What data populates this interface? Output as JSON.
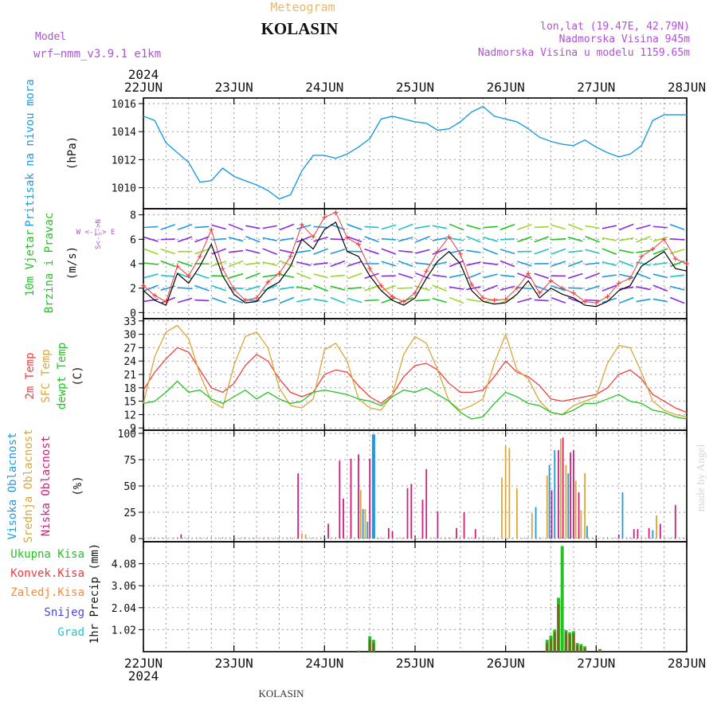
{
  "header": {
    "meteogram_label": "Meteogram",
    "station": "KOLASIN",
    "model_label": "Model",
    "model_name": "wrf—nmm_v3.9.1  e1km",
    "coords": "lon,lat (19.47E, 42.79N)",
    "elevation": "Nadmorska Visina 945m",
    "model_elevation": "Nadmorska Visina u modelu 1159.65m",
    "footer_station": "KOLASIN",
    "watermark": "made by Angel"
  },
  "time_axis": {
    "year": "2024",
    "days": [
      "22JUN",
      "23JUN",
      "24JUN",
      "25JUN",
      "26JUN",
      "27JUN",
      "28JUN"
    ]
  },
  "colors": {
    "pressure": "#1e9be0",
    "wind_speed": "#000000",
    "gust": "#ef3a3a",
    "temp2m": "#ef4040",
    "sfc_temp": "#dba63a",
    "dewpt": "#22c422",
    "high_cloud": "#1e9be0",
    "mid_cloud": "#dba63a",
    "low_cloud": "#d0207a",
    "total_precip": "#22c422",
    "conv_precip": "#ef3a3a",
    "frozen_precip": "#ff8833",
    "snow": "#4444ee",
    "hail": "#22c4c4",
    "model_label": "#b050d8",
    "grid": "#9a9a9a"
  },
  "chart_data": [
    {
      "id": "pressure",
      "type": "line",
      "ylabel_main": "Pritisak na nivou mora",
      "ylabel_unit": "(hPa)",
      "yticks": [
        1010,
        1012,
        1014,
        1016
      ],
      "ylim": [
        1008.5,
        1016.4
      ],
      "xlim": [
        0,
        144
      ],
      "x_unit": "hours since 22JUN 00",
      "x": [
        0,
        3,
        6,
        9,
        12,
        15,
        18,
        21,
        24,
        27,
        30,
        33,
        36,
        39,
        42,
        45,
        48,
        51,
        54,
        57,
        60,
        63,
        66,
        69,
        72,
        75,
        78,
        81,
        84,
        87,
        90,
        93,
        96,
        99,
        102,
        105,
        108,
        111,
        114,
        117,
        120,
        123,
        126,
        129,
        132,
        135,
        138,
        141,
        144
      ],
      "values": [
        1015.1,
        1014.8,
        1013.2,
        1012.5,
        1011.8,
        1010.4,
        1010.5,
        1011.4,
        1010.8,
        1010.5,
        1010.2,
        1009.8,
        1009.2,
        1009.5,
        1011.2,
        1012.3,
        1012.3,
        1012.1,
        1012.4,
        1012.9,
        1013.5,
        1014.9,
        1015.1,
        1014.9,
        1014.7,
        1014.6,
        1014.1,
        1014.2,
        1014.7,
        1015.4,
        1015.8,
        1015.1,
        1014.9,
        1014.7,
        1014.2,
        1013.6,
        1013.3,
        1013.1,
        1013.0,
        1013.4,
        1012.9,
        1012.5,
        1012.2,
        1012.4,
        1013.0,
        1014.8,
        1015.2,
        1015.2,
        1015.2
      ]
    },
    {
      "id": "wind",
      "type": "line",
      "ylabel_main": "10m Vjetar",
      "ylabel_sub": "Brzina i Pravac",
      "ylabel_unit": "(m/s)",
      "compass": "W <-|-> E",
      "compass_ns": "S<-|->N",
      "yticks": [
        0,
        2,
        4,
        6,
        8
      ],
      "ylim": [
        -0.5,
        8.5
      ],
      "xlim": [
        0,
        144
      ],
      "series": [
        {
          "key": "speed",
          "x": [
            0,
            3,
            6,
            9,
            12,
            15,
            18,
            21,
            24,
            27,
            30,
            33,
            36,
            39,
            42,
            45,
            48,
            51,
            54,
            57,
            60,
            63,
            66,
            69,
            72,
            75,
            78,
            81,
            84,
            87,
            90,
            93,
            96,
            99,
            102,
            105,
            108,
            111,
            114,
            117,
            120,
            123,
            126,
            129,
            132,
            135,
            138,
            141,
            144
          ],
          "values": [
            1.8,
            1.0,
            0.6,
            3.2,
            2.4,
            3.8,
            5.6,
            3.0,
            1.5,
            0.8,
            0.9,
            2.0,
            2.5,
            3.8,
            6.0,
            5.2,
            6.8,
            7.4,
            5.0,
            4.6,
            3.0,
            1.8,
            1.0,
            0.6,
            1.2,
            2.8,
            4.2,
            5.0,
            4.0,
            1.8,
            0.9,
            0.7,
            0.8,
            1.5,
            2.6,
            1.2,
            2.0,
            1.5,
            1.2,
            0.6,
            0.5,
            0.9,
            1.8,
            2.2,
            3.8,
            4.4,
            5.0,
            3.6,
            3.4
          ]
        },
        {
          "key": "gust",
          "x": [
            0,
            3,
            6,
            9,
            12,
            15,
            18,
            21,
            24,
            27,
            30,
            33,
            36,
            39,
            42,
            45,
            48,
            51,
            54,
            57,
            60,
            63,
            66,
            69,
            72,
            75,
            78,
            81,
            84,
            87,
            90,
            93,
            96,
            99,
            102,
            105,
            108,
            111,
            114,
            117,
            120,
            123,
            126,
            129,
            132,
            135,
            138,
            141,
            144
          ],
          "values": [
            2.2,
            1.4,
            0.9,
            3.8,
            3.0,
            4.6,
            6.8,
            3.6,
            1.9,
            1.0,
            1.2,
            2.5,
            3.2,
            4.6,
            7.2,
            6.2,
            7.8,
            8.2,
            6.1,
            5.6,
            3.6,
            2.2,
            1.3,
            0.9,
            1.6,
            3.4,
            5.0,
            6.2,
            4.8,
            2.3,
            1.2,
            1.0,
            1.1,
            2.0,
            3.2,
            1.6,
            2.6,
            2.0,
            1.6,
            0.9,
            0.8,
            1.3,
            2.4,
            2.8,
            4.6,
            5.2,
            6.0,
            4.4,
            4.0
          ]
        }
      ]
    },
    {
      "id": "temperature",
      "type": "line",
      "ylabel_main": "2m Temp",
      "ylabel_sub": "SFC Temp",
      "ylabel_sub2": "dewpt Temp",
      "ylabel_unit": "(C)",
      "yticks": [
        9,
        12,
        15,
        18,
        21,
        24,
        27,
        30,
        33
      ],
      "ylim": [
        8.5,
        33.5
      ],
      "xlim": [
        0,
        144
      ],
      "series": [
        {
          "key": "t2m",
          "x": [
            0,
            3,
            6,
            9,
            12,
            15,
            18,
            21,
            24,
            27,
            30,
            33,
            36,
            39,
            42,
            45,
            48,
            51,
            54,
            57,
            60,
            63,
            66,
            69,
            72,
            75,
            78,
            81,
            84,
            87,
            90,
            93,
            96,
            99,
            102,
            105,
            108,
            111,
            114,
            117,
            120,
            123,
            126,
            129,
            132,
            135,
            138,
            141,
            144
          ],
          "values": [
            17.5,
            21.5,
            24.5,
            27.0,
            26.0,
            22.0,
            18.0,
            17.0,
            19.0,
            23.0,
            25.5,
            24.0,
            20.0,
            17.0,
            16.0,
            17.0,
            21.0,
            22.0,
            21.5,
            18.5,
            16.0,
            14.5,
            16.5,
            20.5,
            23.0,
            23.5,
            22.0,
            19.0,
            17.0,
            17.0,
            17.5,
            20.5,
            24.0,
            21.5,
            20.5,
            18.5,
            15.5,
            15.0,
            15.5,
            16.0,
            16.5,
            18.0,
            21.0,
            22.0,
            20.0,
            16.5,
            15.0,
            13.5,
            12.5
          ]
        },
        {
          "key": "sfc",
          "x": [
            0,
            3,
            6,
            9,
            12,
            15,
            18,
            21,
            24,
            27,
            30,
            33,
            36,
            39,
            42,
            45,
            48,
            51,
            54,
            57,
            60,
            63,
            66,
            69,
            72,
            75,
            78,
            81,
            84,
            87,
            90,
            93,
            96,
            99,
            102,
            105,
            108,
            111,
            114,
            117,
            120,
            123,
            126,
            129,
            132,
            135,
            138,
            141,
            144
          ],
          "values": [
            14.5,
            25.0,
            30.5,
            32.0,
            29.0,
            21.0,
            15.0,
            13.5,
            23.0,
            29.5,
            30.5,
            27.0,
            18.0,
            14.0,
            13.5,
            15.5,
            26.5,
            28.0,
            24.0,
            15.5,
            13.5,
            13.0,
            16.5,
            25.5,
            29.5,
            28.0,
            22.0,
            15.0,
            13.0,
            14.0,
            15.5,
            23.5,
            30.0,
            22.0,
            20.0,
            15.0,
            12.5,
            12.0,
            14.0,
            15.0,
            16.0,
            23.5,
            27.5,
            27.0,
            21.5,
            15.0,
            13.0,
            12.0,
            11.5
          ]
        },
        {
          "key": "dewpt",
          "x": [
            0,
            3,
            6,
            9,
            12,
            15,
            18,
            21,
            24,
            27,
            30,
            33,
            36,
            39,
            42,
            45,
            48,
            51,
            54,
            57,
            60,
            63,
            66,
            69,
            72,
            75,
            78,
            81,
            84,
            87,
            90,
            93,
            96,
            99,
            102,
            105,
            108,
            111,
            114,
            117,
            120,
            123,
            126,
            129,
            132,
            135,
            138,
            141,
            144
          ],
          "values": [
            14.5,
            15.0,
            17.0,
            19.5,
            17.0,
            17.5,
            15.5,
            14.5,
            16.0,
            17.5,
            15.5,
            17.0,
            15.5,
            14.5,
            15.0,
            17.0,
            17.5,
            17.0,
            16.5,
            15.5,
            15.0,
            14.0,
            16.0,
            17.5,
            17.0,
            18.0,
            16.5,
            15.0,
            12.5,
            11.0,
            11.5,
            14.5,
            17.0,
            16.0,
            14.5,
            14.0,
            12.5,
            12.0,
            13.0,
            14.5,
            14.5,
            15.5,
            16.5,
            15.0,
            14.5,
            13.0,
            12.5,
            11.5,
            11.0
          ]
        }
      ]
    },
    {
      "id": "clouds",
      "type": "bar",
      "ylabel_main": "Visoka Oblacnost",
      "ylabel_sub": "Srednja Oblacnost",
      "ylabel_sub2": "Niska Oblacnost",
      "ylabel_unit": "(%)",
      "yticks": [
        0,
        25,
        50,
        75,
        100
      ],
      "ylim": [
        -3,
        103
      ],
      "xlim": [
        0,
        144
      ],
      "bars": [
        {
          "x": 10,
          "layer": "low",
          "value": 4
        },
        {
          "x": 41,
          "layer": "low",
          "value": 62
        },
        {
          "x": 42,
          "layer": "mid",
          "value": 5
        },
        {
          "x": 43,
          "layer": "mid",
          "value": 4
        },
        {
          "x": 49,
          "layer": "low",
          "value": 14
        },
        {
          "x": 52,
          "layer": "low",
          "value": 74
        },
        {
          "x": 53,
          "layer": "low",
          "value": 38
        },
        {
          "x": 55,
          "layer": "low",
          "value": 76
        },
        {
          "x": 57,
          "layer": "low",
          "value": 80
        },
        {
          "x": 57.6,
          "layer": "mid",
          "value": 46
        },
        {
          "x": 58.2,
          "layer": "high",
          "value": 28
        },
        {
          "x": 58.8,
          "layer": "mid",
          "value": 28
        },
        {
          "x": 59.4,
          "layer": "high",
          "value": 16
        },
        {
          "x": 60,
          "layer": "low",
          "value": 76
        },
        {
          "x": 61,
          "layer": "high",
          "value": 99
        },
        {
          "x": 65,
          "layer": "low",
          "value": 10
        },
        {
          "x": 66,
          "layer": "low",
          "value": 7
        },
        {
          "x": 70,
          "layer": "low",
          "value": 48
        },
        {
          "x": 71,
          "layer": "low",
          "value": 52
        },
        {
          "x": 74,
          "layer": "low",
          "value": 37
        },
        {
          "x": 75,
          "layer": "low",
          "value": 66
        },
        {
          "x": 78,
          "layer": "low",
          "value": 26
        },
        {
          "x": 83,
          "layer": "low",
          "value": 10
        },
        {
          "x": 85,
          "layer": "low",
          "value": 25
        },
        {
          "x": 88,
          "layer": "low",
          "value": 9
        },
        {
          "x": 95,
          "layer": "mid",
          "value": 58
        },
        {
          "x": 96,
          "layer": "mid",
          "value": 88
        },
        {
          "x": 97,
          "layer": "mid",
          "value": 86
        },
        {
          "x": 99,
          "layer": "mid",
          "value": 48
        },
        {
          "x": 103,
          "layer": "mid",
          "value": 24
        },
        {
          "x": 104,
          "layer": "high",
          "value": 30
        },
        {
          "x": 107,
          "layer": "mid",
          "value": 60
        },
        {
          "x": 107.6,
          "layer": "high",
          "value": 70
        },
        {
          "x": 108.2,
          "layer": "low",
          "value": 46
        },
        {
          "x": 109,
          "layer": "high",
          "value": 84
        },
        {
          "x": 110,
          "layer": "low",
          "value": 84
        },
        {
          "x": 110.6,
          "layer": "mid",
          "value": 95
        },
        {
          "x": 111.2,
          "layer": "low",
          "value": 96
        },
        {
          "x": 112,
          "layer": "mid",
          "value": 70
        },
        {
          "x": 112.6,
          "layer": "high",
          "value": 62
        },
        {
          "x": 113.2,
          "layer": "low",
          "value": 82
        },
        {
          "x": 114,
          "layer": "low",
          "value": 84
        },
        {
          "x": 114.6,
          "layer": "mid",
          "value": 55
        },
        {
          "x": 115.4,
          "layer": "low",
          "value": 44
        },
        {
          "x": 116,
          "layer": "mid",
          "value": 27
        },
        {
          "x": 117,
          "layer": "mid",
          "value": 62
        },
        {
          "x": 117.6,
          "layer": "high",
          "value": 12
        },
        {
          "x": 126,
          "layer": "low",
          "value": 4
        },
        {
          "x": 127,
          "layer": "high",
          "value": 44
        },
        {
          "x": 130,
          "layer": "low",
          "value": 9
        },
        {
          "x": 131,
          "layer": "low",
          "value": 9
        },
        {
          "x": 134,
          "layer": "low",
          "value": 10
        },
        {
          "x": 135,
          "layer": "high",
          "value": 8
        },
        {
          "x": 136,
          "layer": "mid",
          "value": 22
        },
        {
          "x": 137,
          "layer": "low",
          "value": 14
        },
        {
          "x": 141,
          "layer": "low",
          "value": 32
        }
      ]
    },
    {
      "id": "precip",
      "type": "bar",
      "ylabel_unit": "1hr Precip (mm)",
      "legend": [
        "Ukupna Kisa",
        "Konvek.Kisa",
        "Zaledj.Kisa",
        "Snijeg",
        "Grad"
      ],
      "yticks": [
        1.02,
        2.04,
        3.06,
        4.08
      ],
      "tick_labels": [
        "1.02",
        "2.04",
        "3.06",
        "4.08"
      ],
      "ylim": [
        0,
        5.1
      ],
      "xlim": [
        0,
        144
      ],
      "bars": [
        {
          "x": 57,
          "total": 0.05,
          "conv": 0.04
        },
        {
          "x": 60,
          "total": 0.72,
          "conv": 0.55
        },
        {
          "x": 61,
          "total": 0.55,
          "conv": 0.4
        },
        {
          "x": 107,
          "total": 0.55,
          "conv": 0.4
        },
        {
          "x": 108,
          "total": 0.75,
          "conv": 0.6
        },
        {
          "x": 109,
          "total": 1.02,
          "conv": 0.9
        },
        {
          "x": 110,
          "total": 2.5,
          "conv": 2.2
        },
        {
          "x": 111,
          "total": 4.9,
          "conv": 0.0
        },
        {
          "x": 112,
          "total": 1.0,
          "conv": 0.9
        },
        {
          "x": 113,
          "total": 0.9,
          "conv": 0.8
        },
        {
          "x": 114,
          "total": 0.95,
          "conv": 0.85
        },
        {
          "x": 115,
          "total": 0.4,
          "conv": 0.3
        },
        {
          "x": 116,
          "total": 0.35,
          "conv": 0.25
        },
        {
          "x": 117,
          "total": 0.25,
          "conv": 0.15
        },
        {
          "x": 121,
          "total": 0.12,
          "conv": 0.08
        }
      ]
    }
  ]
}
